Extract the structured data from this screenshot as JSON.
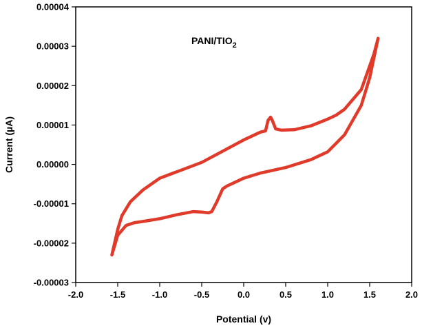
{
  "chart_data": {
    "type": "line",
    "title": "",
    "annotation": {
      "text": "PANI/TIO",
      "subscript": "2"
    },
    "xlabel": "Potential (v)",
    "ylabel": "Current (µA)",
    "xlim": [
      -2.0,
      2.0
    ],
    "ylim": [
      -3e-05,
      4e-05
    ],
    "x_ticks": [
      -2.0,
      -1.5,
      -1.0,
      -0.5,
      0.0,
      0.5,
      1.0,
      1.5,
      2.0
    ],
    "x_tick_labels": [
      "-2.0",
      "-1.5",
      "-1.0",
      "-0.5",
      "0.0",
      "0.5",
      "1.0",
      "1.5",
      "2.0"
    ],
    "y_ticks": [
      -3e-05,
      -2e-05,
      -1e-05,
      0.0,
      1e-05,
      2e-05,
      3e-05,
      4e-05
    ],
    "y_tick_labels": [
      "-0.00003",
      "-0.00002",
      "-0.00001",
      "0.00000",
      "0.00001",
      "0.00002",
      "0.00003",
      "0.00004"
    ],
    "grid": false,
    "series": [
      {
        "color": "#e03a2b",
        "x": [
          -1.57,
          -1.5,
          -1.4,
          -1.3,
          -1.2,
          -1.0,
          -0.8,
          -0.6,
          -0.5,
          -0.42,
          -0.38,
          -0.32,
          -0.25,
          -0.2,
          -0.1,
          0.0,
          0.2,
          0.5,
          0.8,
          1.0,
          1.2,
          1.4,
          1.5,
          1.6,
          1.6,
          1.55,
          1.5,
          1.45,
          1.4,
          1.3,
          1.2,
          1.1,
          1.0,
          0.8,
          0.6,
          0.45,
          0.38,
          0.34,
          0.32,
          0.29,
          0.26,
          0.2,
          0.0,
          -0.5,
          -1.0,
          -1.2,
          -1.35,
          -1.45,
          -1.5,
          -1.57
        ],
        "y": [
          -2.3e-05,
          -1.8e-05,
          -1.55e-05,
          -1.48e-05,
          -1.45e-05,
          -1.38e-05,
          -1.28e-05,
          -1.2e-05,
          -1.21e-05,
          -1.23e-05,
          -1.2e-05,
          -9.5e-06,
          -6.2e-06,
          -5.5e-06,
          -4.5e-06,
          -3.5e-06,
          -2.2e-06,
          -8e-07,
          1.2e-06,
          3.2e-06,
          7.5e-06,
          1.5e-05,
          2.2e-05,
          3.2e-05,
          3.2e-05,
          2.8e-05,
          2.5e-05,
          2.2e-05,
          1.9e-05,
          1.65e-05,
          1.4e-05,
          1.25e-05,
          1.15e-05,
          9.8e-06,
          8.8e-06,
          8.7e-06,
          9e-06,
          1.12e-05,
          1.2e-05,
          1.12e-05,
          8.5e-06,
          8.2e-06,
          6.2e-06,
          5e-07,
          -3.5e-06,
          -6.5e-06,
          -9.5e-06,
          -1.3e-05,
          -1.65e-05,
          -2.3e-05
        ]
      }
    ]
  }
}
